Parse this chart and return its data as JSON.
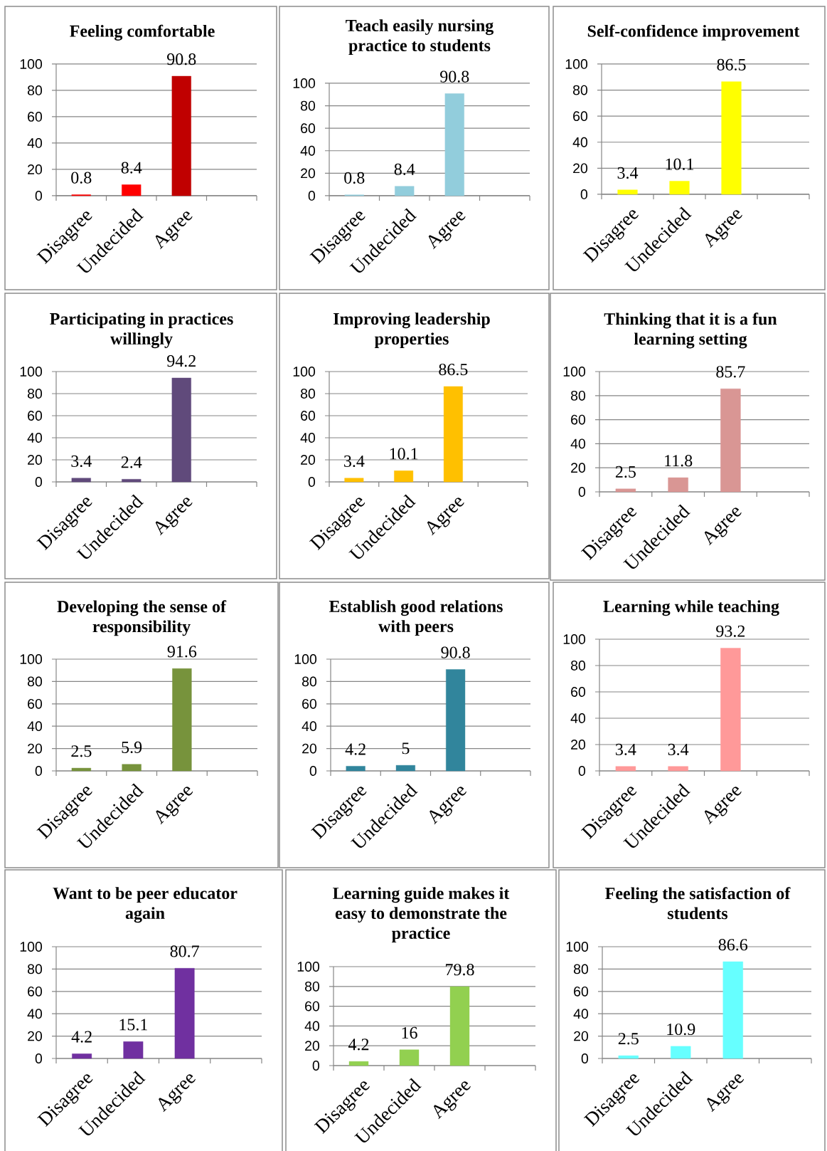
{
  "chart_data": [
    {
      "type": "bar",
      "title": "Feeling comfortable",
      "categories": [
        "Disagree",
        "Undecided",
        "Agree",
        null
      ],
      "values": [
        0.8,
        8.4,
        90.8,
        null
      ],
      "colors": [
        "#FF0000",
        "#FF0000",
        "#C00000",
        null
      ],
      "ylim": [
        0,
        100
      ],
      "yticks": [
        0,
        20,
        40,
        60,
        80,
        100
      ],
      "grid": "y",
      "data_labels": true
    },
    {
      "type": "bar",
      "title": "Teach easily nursing practice to students",
      "categories": [
        "Disagree",
        "Undecided",
        "Agree",
        null
      ],
      "values": [
        0.8,
        8.4,
        90.8,
        null
      ],
      "color": "#92CDDC",
      "ylim": [
        0,
        100
      ],
      "yticks": [
        0,
        20,
        40,
        60,
        80,
        100
      ],
      "grid": "y",
      "data_labels": true
    },
    {
      "type": "bar",
      "title": "Self-confidence improvement",
      "categories": [
        "Disagree",
        "Undecided",
        "Agree",
        null
      ],
      "values": [
        3.4,
        10.1,
        86.5,
        null
      ],
      "color": "#FFFF00",
      "ylim": [
        0,
        100
      ],
      "yticks": [
        0,
        20,
        40,
        60,
        80,
        100
      ],
      "grid": "y",
      "data_labels": true
    },
    {
      "type": "bar",
      "title": "Participating in practices willingly",
      "categories": [
        "Disagree",
        "Undecided",
        "Agree",
        null
      ],
      "values": [
        3.4,
        2.4,
        94.2,
        null
      ],
      "color": "#604A7B",
      "ylim": [
        0,
        100
      ],
      "yticks": [
        0,
        20,
        40,
        60,
        80,
        100
      ],
      "grid": "y",
      "data_labels": true
    },
    {
      "type": "bar",
      "title": "Improving leadership properties",
      "categories": [
        "Disagree",
        "Undecided",
        "Agree",
        null
      ],
      "values": [
        3.4,
        10.1,
        86.5,
        null
      ],
      "color": "#FFC000",
      "ylim": [
        0,
        100
      ],
      "yticks": [
        0,
        20,
        40,
        60,
        80,
        100
      ],
      "grid": "y",
      "data_labels": true
    },
    {
      "type": "bar",
      "title": "Thinking that it is a fun learning setting",
      "categories": [
        "Disagree",
        "Undecided",
        "Agree",
        null
      ],
      "values": [
        2.5,
        11.8,
        85.7,
        null
      ],
      "color": "#D99694",
      "ylim": [
        0,
        100
      ],
      "yticks": [
        0,
        20,
        40,
        60,
        80,
        100
      ],
      "grid": "y",
      "data_labels": true
    },
    {
      "type": "bar",
      "title": "Developing the sense of responsibility",
      "categories": [
        "Disagree",
        "Undecided",
        "Agree",
        null
      ],
      "values": [
        2.5,
        5.9,
        91.6,
        null
      ],
      "color": "#77933C",
      "ylim": [
        0,
        100
      ],
      "yticks": [
        0,
        20,
        40,
        60,
        80,
        100
      ],
      "grid": "y",
      "data_labels": true
    },
    {
      "type": "bar",
      "title": "Establish good relations with peers",
      "categories": [
        "Disagree",
        "Undecided",
        "Agree",
        null
      ],
      "values": [
        4.2,
        5,
        90.8,
        null
      ],
      "color": "#31859C",
      "ylim": [
        0,
        100
      ],
      "yticks": [
        0,
        20,
        40,
        60,
        80,
        100
      ],
      "grid": "y",
      "data_labels": true
    },
    {
      "type": "bar",
      "title": "Learning while teaching",
      "categories": [
        "Disagree",
        "Undecided",
        "Agree",
        null
      ],
      "values": [
        3.4,
        3.4,
        93.2,
        null
      ],
      "color": "#FF9999",
      "ylim": [
        0,
        100
      ],
      "yticks": [
        0,
        20,
        40,
        60,
        80,
        100
      ],
      "grid": "y",
      "data_labels": true
    },
    {
      "type": "bar",
      "title": "Want to be peer educator again",
      "categories": [
        "Disagree",
        "Undecided",
        "Agree",
        null
      ],
      "values": [
        4.2,
        15.1,
        80.7,
        null
      ],
      "color": "#7030A0",
      "ylim": [
        0,
        100
      ],
      "yticks": [
        0,
        20,
        40,
        60,
        80,
        100
      ],
      "grid": "y",
      "data_labels": true
    },
    {
      "type": "bar",
      "title": "Learning guide makes it easy to demonstrate the practice",
      "categories": [
        "Disagree",
        "Undecided",
        "Agree",
        null
      ],
      "values": [
        4.2,
        16,
        79.8,
        null
      ],
      "color": "#92D050",
      "ylim": [
        0,
        100
      ],
      "yticks": [
        0,
        20,
        40,
        60,
        80,
        100
      ],
      "grid": "y",
      "data_labels": true
    },
    {
      "type": "bar",
      "title": "Feeling the satisfaction of students",
      "categories": [
        "Disagree",
        "Undecided",
        "Agree",
        null
      ],
      "values": [
        2.5,
        10.9,
        86.6,
        null
      ],
      "color": "#66FFFF",
      "ylim": [
        0,
        100
      ],
      "yticks": [
        0,
        20,
        40,
        60,
        80,
        100
      ],
      "grid": "y",
      "data_labels": true
    }
  ]
}
